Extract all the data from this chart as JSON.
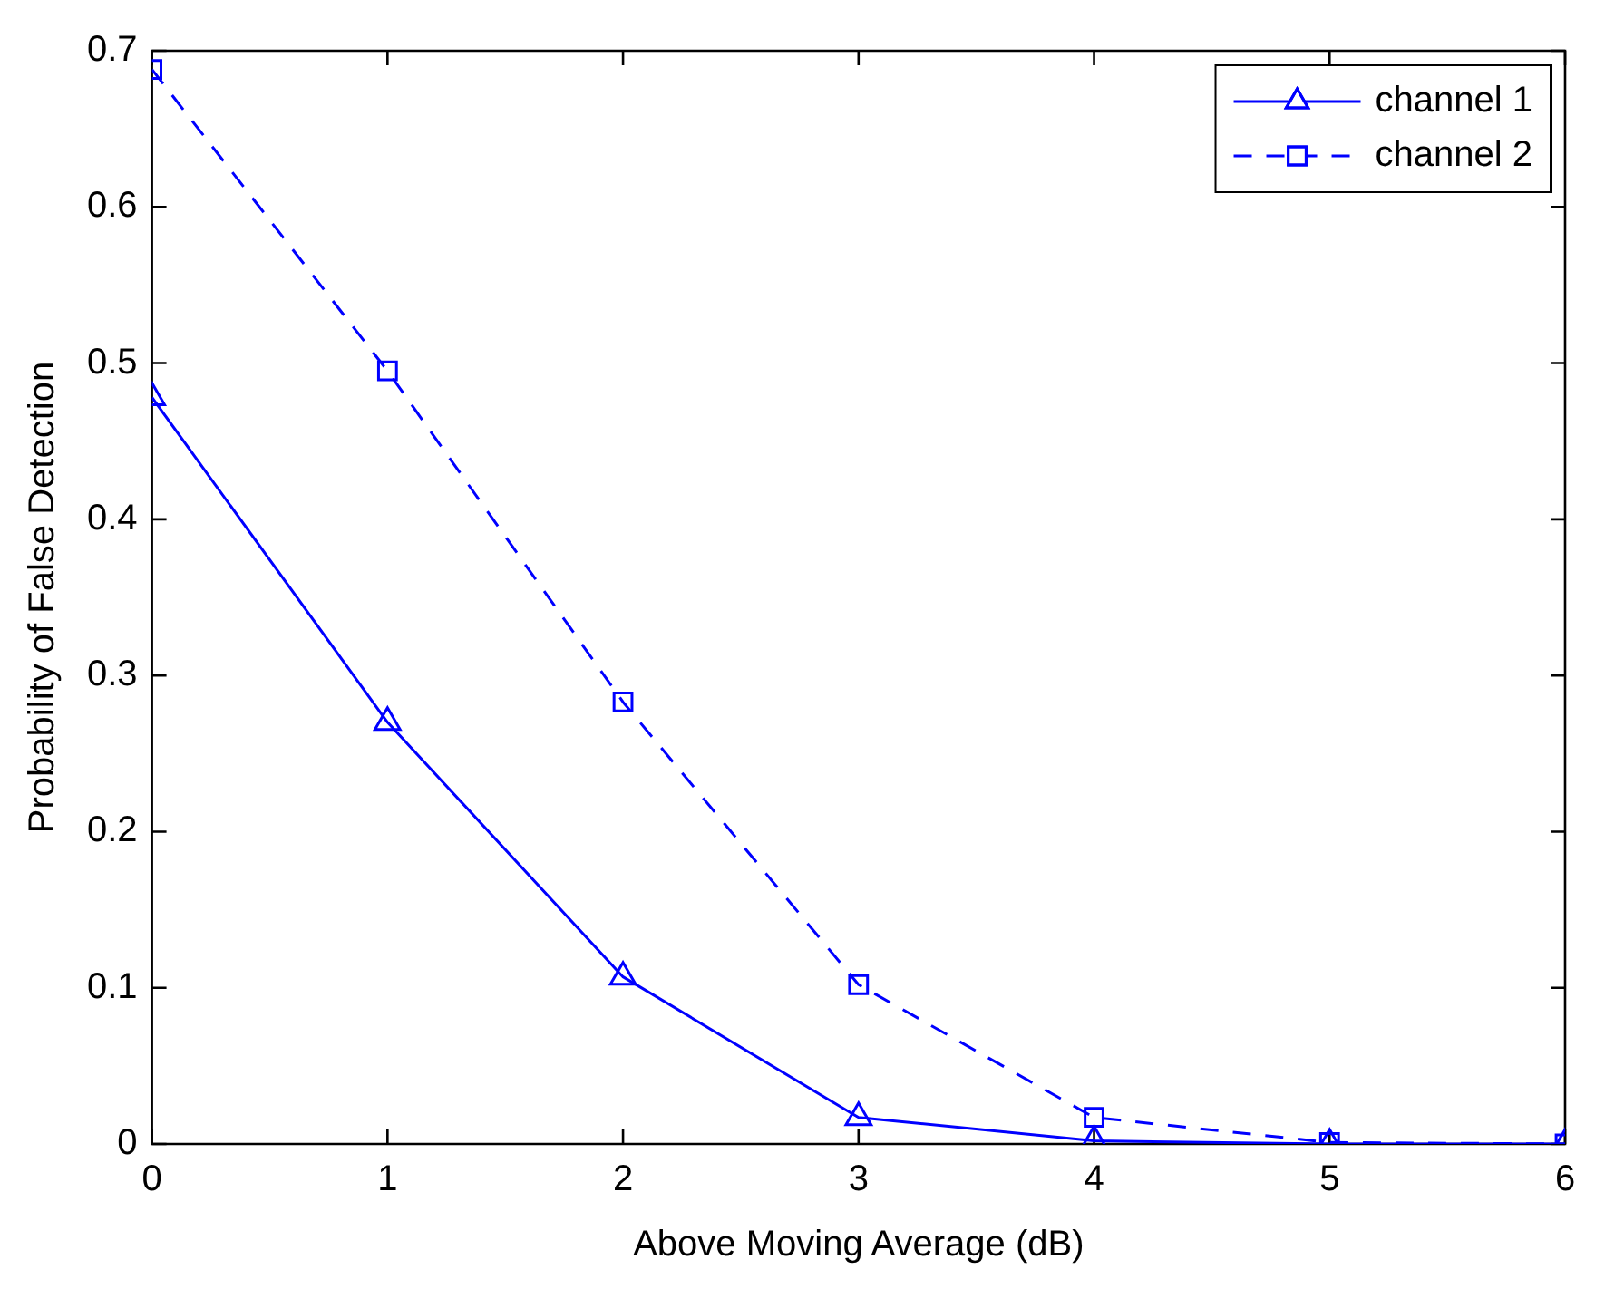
{
  "chart_data": {
    "type": "line",
    "xlabel": "Above Moving Average (dB)",
    "ylabel": "Probability of False Detection",
    "x": [
      0,
      1,
      2,
      3,
      4,
      5,
      6
    ],
    "series": [
      {
        "name": "channel 1",
        "color": "#0000ff",
        "marker": "triangle",
        "line_style": "solid",
        "values": [
          0.478,
          0.27,
          0.107,
          0.017,
          0.002,
          0,
          0
        ]
      },
      {
        "name": "channel 2",
        "color": "#0000ff",
        "marker": "square",
        "line_style": "dashed",
        "values": [
          0.688,
          0.495,
          0.283,
          0.102,
          0.017,
          0.001,
          0
        ]
      }
    ],
    "xlim": [
      0,
      6
    ],
    "xticks": [
      0,
      1,
      2,
      3,
      4,
      5,
      6
    ],
    "ylim": [
      0,
      0.7
    ],
    "yticks": [
      0,
      0.1,
      0.2,
      0.3,
      0.4,
      0.5,
      0.6,
      0.7
    ],
    "grid": false,
    "legend": "top right"
  }
}
